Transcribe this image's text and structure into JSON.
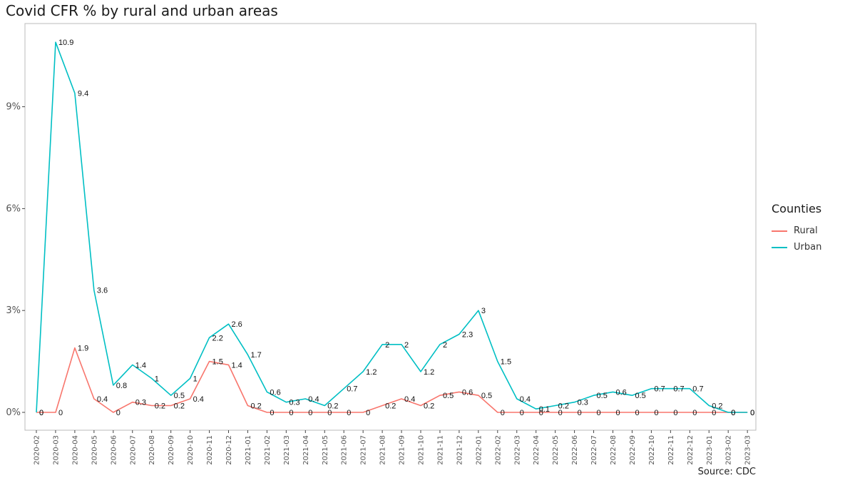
{
  "title": "Covid CFR % by rural and urban areas",
  "source": "Source: CDC",
  "legend": {
    "title": "Counties",
    "items": [
      {
        "label": "Rural",
        "color": "#F8766D"
      },
      {
        "label": "Urban",
        "color": "#00BFC4"
      }
    ]
  },
  "chart_data": {
    "type": "line",
    "x": [
      "2020-02",
      "2020-03",
      "2020-04",
      "2020-05",
      "2020-06",
      "2020-07",
      "2020-08",
      "2020-09",
      "2020-10",
      "2020-11",
      "2020-12",
      "2021-01",
      "2021-02",
      "2021-03",
      "2021-04",
      "2021-05",
      "2021-06",
      "2021-07",
      "2021-08",
      "2021-09",
      "2021-10",
      "2021-11",
      "2021-12",
      "2022-01",
      "2022-02",
      "2022-03",
      "2022-04",
      "2022-05",
      "2022-06",
      "2022-07",
      "2022-08",
      "2022-09",
      "2022-10",
      "2022-11",
      "2022-12",
      "2023-01",
      "2023-02",
      "2023-03"
    ],
    "series": [
      {
        "name": "Rural",
        "color": "#F8766D",
        "values": [
          0,
          0,
          1.9,
          0.4,
          0,
          0.3,
          0.2,
          0.2,
          0.4,
          1.5,
          1.4,
          0.2,
          0,
          0,
          0,
          0,
          0,
          0,
          0.2,
          0.4,
          0.2,
          0.5,
          0.6,
          0.5,
          0,
          0,
          0,
          0,
          0,
          0,
          0,
          0,
          0,
          0,
          0,
          0,
          0,
          0
        ]
      },
      {
        "name": "Urban",
        "color": "#00BFC4",
        "values": [
          0,
          10.9,
          9.4,
          3.6,
          0.8,
          1.4,
          1,
          0.5,
          1,
          2.2,
          2.6,
          1.7,
          0.6,
          0.3,
          0.4,
          0.2,
          0.7,
          1.2,
          2,
          2,
          1.2,
          2,
          2.3,
          3,
          1.5,
          0.4,
          0.1,
          0.2,
          0.3,
          0.5,
          0.6,
          0.5,
          0.7,
          0.7,
          0.7,
          0.2,
          0,
          0
        ]
      }
    ],
    "y_ticks": [
      0,
      3,
      6,
      9
    ],
    "y_tick_labels": [
      "0%",
      "3%",
      "6%",
      "9%"
    ],
    "ylim": [
      -0.5,
      11.5
    ],
    "grid": false,
    "legend_position": "right",
    "xlabel": "",
    "ylabel": ""
  }
}
